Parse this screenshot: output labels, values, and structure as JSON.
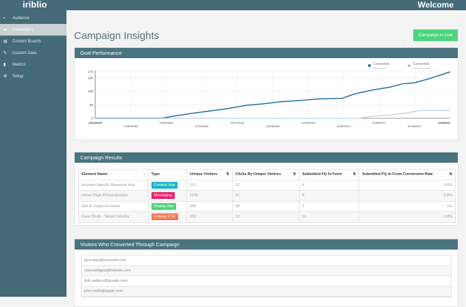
{
  "header": {
    "logo": "iriblio",
    "welcome": "Welcome"
  },
  "sidebar": {
    "items": [
      {
        "label": "Audience",
        "icon": "users-icon",
        "glyph": "▪"
      },
      {
        "label": "Campaigns",
        "icon": "campaign-icon",
        "glyph": "▰",
        "active": true
      },
      {
        "label": "Content Boards",
        "icon": "board-icon",
        "glyph": "▤"
      },
      {
        "label": "Custom Data",
        "icon": "pencil-icon",
        "glyph": "✎"
      },
      {
        "label": "Metrics",
        "icon": "bar-chart-icon",
        "glyph": "▮"
      },
      {
        "label": "Setup",
        "icon": "gear-icon",
        "glyph": "⚙"
      }
    ]
  },
  "page": {
    "title": "Campaign Insights",
    "status_button": "Campaign is Live"
  },
  "goal": {
    "title": "Goal Performance"
  },
  "chart_data": {
    "type": "line",
    "y_ticks": [
      0,
      50,
      100,
      150,
      173
    ],
    "ylim": [
      0,
      173
    ],
    "x_ticks": [
      "11/22/2016",
      "11/30/2016",
      "12/05/2016",
      "12/11/2016",
      "12/17/2016",
      "12/23/2016",
      "12/29/2016",
      "01/03/2017",
      "01/09/2017",
      "01/15/2017",
      "01/20/201"
    ],
    "legend_position": "top-right",
    "grid": true,
    "series": [
      {
        "name": "Converted",
        "sub": "this period",
        "color": "#1f6f9f",
        "points": [
          [
            "2016-11-22",
            0
          ],
          [
            "2016-12-03",
            0
          ],
          [
            "2016-12-05",
            8
          ],
          [
            "2016-12-08",
            18
          ],
          [
            "2016-12-11",
            27
          ],
          [
            "2016-12-14",
            36
          ],
          [
            "2016-12-17",
            48
          ],
          [
            "2016-12-20",
            54
          ],
          [
            "2016-12-23",
            62
          ],
          [
            "2016-12-26",
            66
          ],
          [
            "2016-12-29",
            72
          ],
          [
            "2017-01-02",
            74
          ],
          [
            "2017-01-04",
            90
          ],
          [
            "2017-01-07",
            105
          ],
          [
            "2017-01-10",
            116
          ],
          [
            "2017-01-12",
            128
          ],
          [
            "2017-01-14",
            132
          ],
          [
            "2017-01-16",
            144
          ],
          [
            "2017-01-18",
            158
          ],
          [
            "2017-01-20",
            173
          ]
        ]
      },
      {
        "name": "Converted",
        "sub": "previous period",
        "color": "#a9c4dc",
        "points": [
          [
            "2016-11-22",
            0
          ],
          [
            "2017-01-05",
            0
          ],
          [
            "2017-01-07",
            8
          ],
          [
            "2017-01-10",
            12
          ],
          [
            "2017-01-13",
            21
          ],
          [
            "2017-01-15",
            29
          ],
          [
            "2017-01-20",
            29
          ]
        ]
      }
    ]
  },
  "results": {
    "title": "Campaign Results",
    "columns": [
      "Element Name",
      "Type",
      "Unique Visitors",
      "Clicks By Unique Visitors",
      "Submitted Fly In Form",
      "Submitted Fly In Form Conversion Rate"
    ],
    "rows": [
      {
        "name": "Account-Specific Resource Hub",
        "type": "Content Hub",
        "color": "#1fb5c9",
        "visitors": "110",
        "clicks": "12",
        "submitted": "4",
        "rate": "3.6%"
      },
      {
        "name": "Home Page Personalization",
        "type": "Messaging",
        "color": "#e8246c",
        "visitors": "1139",
        "clicks": "51",
        "submitted": "9",
        "rate": "0.8%"
      },
      {
        "name": "Ads to Target Accounts",
        "type": "Display Ads",
        "color": "#4cd47d",
        "visitors": "669",
        "clicks": "38",
        "submitted": "7",
        "rate": "1%"
      },
      {
        "name": "Case Study - Target Industry",
        "type": "Overlay CTA",
        "color": "#f27b5a",
        "visitors": "292",
        "clicks": "13",
        "submitted": "11",
        "rate": "3.8%"
      }
    ]
  },
  "visitors": {
    "title": "Visitors Who Converted Through Campaign",
    "emails": [
      "jane.doe@microsoft.com",
      "clara.bridges@linkedin.com",
      "bob.wallace@google.com",
      "john.smith@apple.com"
    ]
  }
}
